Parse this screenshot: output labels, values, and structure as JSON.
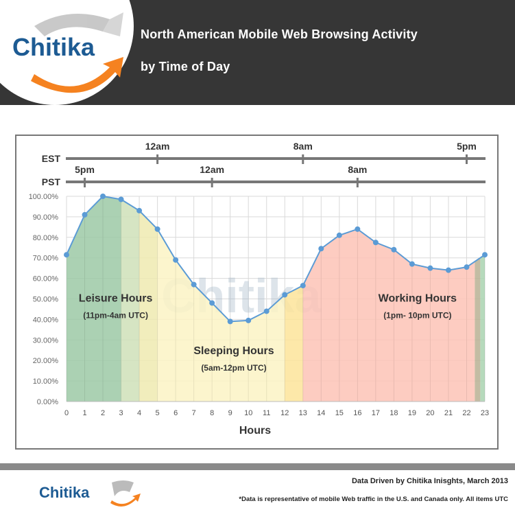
{
  "header": {
    "logo_text": "Chitika",
    "title_line1": "North American Mobile Web Browsing Activity",
    "title_line2": "by Time of Day"
  },
  "timezones": {
    "est": {
      "label": "EST",
      "marks": [
        {
          "label": "12am",
          "hour": 5
        },
        {
          "label": "8am",
          "hour": 13
        },
        {
          "label": "5pm",
          "hour": 22
        }
      ]
    },
    "pst": {
      "label": "PST",
      "marks": [
        {
          "label": "5pm",
          "hour": 1
        },
        {
          "label": "12am",
          "hour": 8
        },
        {
          "label": "8am",
          "hour": 16
        }
      ]
    }
  },
  "chart_data": {
    "type": "area",
    "xlabel": "Hours",
    "ylabel": "",
    "x": [
      0,
      1,
      2,
      3,
      4,
      5,
      6,
      7,
      8,
      9,
      10,
      11,
      12,
      13,
      14,
      15,
      16,
      17,
      18,
      19,
      20,
      21,
      22,
      23
    ],
    "values": [
      71.5,
      91,
      100,
      98.5,
      93,
      84,
      69,
      57,
      48,
      39,
      39.5,
      44,
      52,
      56.5,
      74.5,
      81,
      84,
      77.5,
      74,
      67,
      65,
      64,
      65.5,
      71.5
    ],
    "ylim": [
      0,
      100
    ],
    "yticks": [
      "0.00%",
      "10.00%",
      "20.00%",
      "30.00%",
      "40.00%",
      "50.00%",
      "60.00%",
      "70.00%",
      "80.00%",
      "90.00%",
      "100.00%"
    ],
    "grid": true,
    "line_color": "#5b9bd5",
    "bands": [
      {
        "from": 0,
        "to": 3,
        "color": "#9cc9a6"
      },
      {
        "from": 3,
        "to": 4,
        "color": "#cfe0b8"
      },
      {
        "from": 4,
        "to": 5,
        "color": "#eeeab0"
      },
      {
        "from": 5,
        "to": 12,
        "color": "#fbf3c4"
      },
      {
        "from": 12,
        "to": 13,
        "color": "#fde49a"
      },
      {
        "from": 13,
        "to": 22.45,
        "color": "#fdc3b6"
      },
      {
        "from": 22.45,
        "to": 22.75,
        "color": "#b9b093"
      },
      {
        "from": 22.75,
        "to": 23,
        "color": "#a9d3b0"
      }
    ],
    "annotations": [
      {
        "title": "Leisure Hours",
        "subtitle": "(11pm-4am UTC)",
        "hour": 2.7,
        "value": 51
      },
      {
        "title": "Sleeping Hours",
        "subtitle": "(5am-12pm UTC)",
        "hour": 9.2,
        "value": 25.5
      },
      {
        "title": "Working Hours",
        "subtitle": "(1pm- 10pm UTC)",
        "hour": 19.3,
        "value": 51
      }
    ]
  },
  "footer": {
    "logo_text": "Chitika",
    "credit": "Data Driven by Chitika Inisghts, March 2013",
    "note": "*Data is representative of mobile Web traffic in the U.S. and Canada only. All items UTC"
  }
}
